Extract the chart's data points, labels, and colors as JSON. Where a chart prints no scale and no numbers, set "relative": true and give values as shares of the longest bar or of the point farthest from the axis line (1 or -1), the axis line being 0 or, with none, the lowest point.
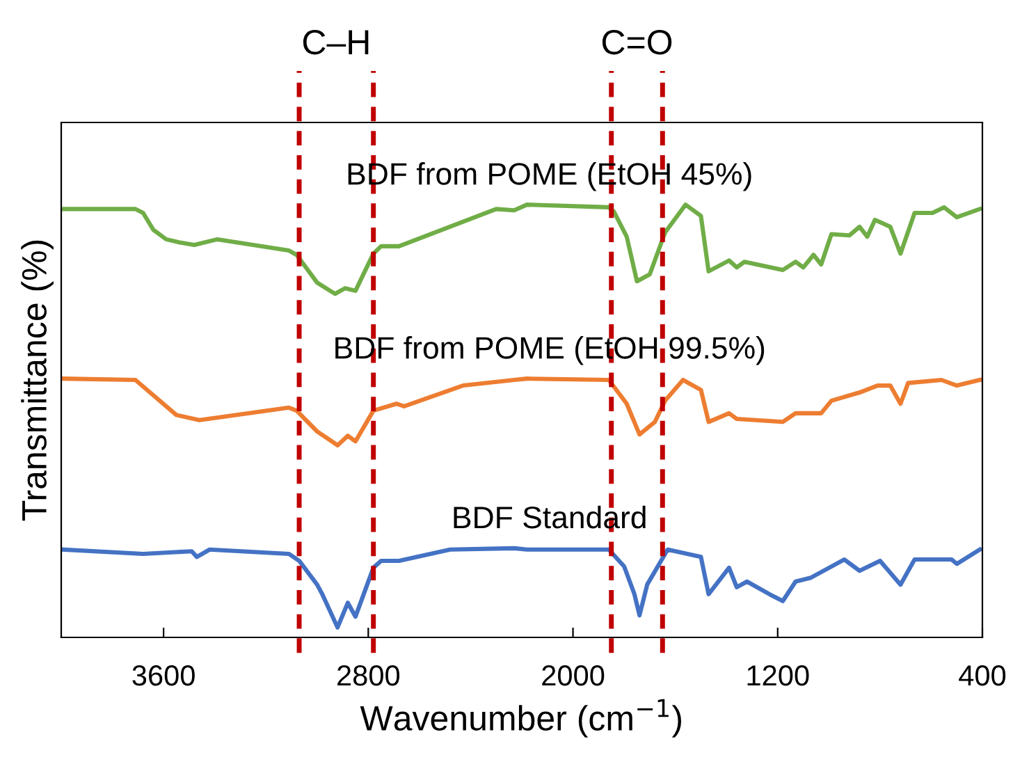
{
  "chart_data": {
    "type": "line",
    "relative": true,
    "xlabel": "Wavenumber (cm$^{−1}$)",
    "ylabel": "Transmittance (%)",
    "xlim": [
      4000,
      400
    ],
    "xticks": [
      3600,
      2800,
      2000,
      1200,
      400
    ],
    "grid": false,
    "marker": "none",
    "line_style": "solid",
    "tick_labels": "x",
    "series": [
      {
        "name": "BDF from POME (EtOH 45%)",
        "color": "#70ad47",
        "x": [
          3990,
          3710,
          3680,
          3640,
          3590,
          3540,
          3480,
          3390,
          3110,
          3080,
          3000,
          2930,
          2890,
          2850,
          2780,
          2750,
          2680,
          2300,
          2230,
          2180,
          1860,
          1840,
          1790,
          1750,
          1700,
          1640,
          1560,
          1500,
          1470,
          1390,
          1360,
          1330,
          1180,
          1130,
          1100,
          1060,
          1030,
          990,
          920,
          880,
          850,
          820,
          760,
          720,
          665,
          595,
          550,
          500,
          410
        ],
        "values": [
          0.99,
          0.99,
          0.981,
          0.942,
          0.92,
          0.913,
          0.907,
          0.92,
          0.894,
          0.884,
          0.82,
          0.794,
          0.807,
          0.801,
          0.887,
          0.904,
          0.904,
          0.99,
          0.987,
          1.0,
          0.994,
          0.984,
          0.926,
          0.823,
          0.839,
          0.936,
          1.0,
          0.974,
          0.846,
          0.871,
          0.855,
          0.868,
          0.849,
          0.868,
          0.855,
          0.884,
          0.862,
          0.932,
          0.929,
          0.949,
          0.926,
          0.965,
          0.949,
          0.887,
          0.981,
          0.981,
          0.994,
          0.971,
          0.99
        ]
      },
      {
        "name": "BDF from POME (EtOH 99.5%)",
        "color": "#ed7d31",
        "x": [
          3990,
          3710,
          3550,
          3460,
          3110,
          3080,
          3000,
          2920,
          2880,
          2850,
          2780,
          2690,
          2660,
          2430,
          2230,
          2180,
          1860,
          1790,
          1740,
          1680,
          1640,
          1570,
          1500,
          1470,
          1390,
          1360,
          1180,
          1130,
          1030,
          990,
          880,
          810,
          760,
          720,
          690,
          560,
          500,
          410
        ],
        "values": [
          0.598,
          0.595,
          0.514,
          0.502,
          0.531,
          0.524,
          0.476,
          0.444,
          0.466,
          0.453,
          0.524,
          0.54,
          0.534,
          0.582,
          0.595,
          0.598,
          0.595,
          0.54,
          0.469,
          0.498,
          0.547,
          0.595,
          0.572,
          0.498,
          0.518,
          0.505,
          0.498,
          0.518,
          0.518,
          0.547,
          0.566,
          0.582,
          0.582,
          0.54,
          0.588,
          0.595,
          0.582,
          0.595
        ]
      },
      {
        "name": "BDF Standard",
        "color": "#4472c4",
        "x": [
          3990,
          3680,
          3490,
          3470,
          3420,
          3110,
          3070,
          3000,
          2980,
          2920,
          2880,
          2850,
          2780,
          2750,
          2680,
          2480,
          2230,
          2180,
          1860,
          1800,
          1760,
          1740,
          1710,
          1630,
          1500,
          1470,
          1390,
          1360,
          1320,
          1220,
          1180,
          1130,
          1070,
          940,
          880,
          800,
          720,
          665,
          520,
          500,
          410
        ],
        "values": [
          0.203,
          0.193,
          0.199,
          0.186,
          0.203,
          0.193,
          0.177,
          0.122,
          0.1,
          0.023,
          0.08,
          0.048,
          0.161,
          0.177,
          0.177,
          0.203,
          0.206,
          0.203,
          0.203,
          0.164,
          0.1,
          0.051,
          0.122,
          0.203,
          0.186,
          0.1,
          0.161,
          0.116,
          0.129,
          0.096,
          0.084,
          0.129,
          0.138,
          0.18,
          0.154,
          0.177,
          0.122,
          0.18,
          0.18,
          0.17,
          0.203
        ]
      }
    ],
    "ref_lines": [
      {
        "axis": "x",
        "value": 3070,
        "color": "#c00000",
        "line_style": "dashed"
      },
      {
        "axis": "x",
        "value": 2780,
        "color": "#c00000",
        "line_style": "dashed"
      },
      {
        "axis": "x",
        "value": 1850,
        "color": "#c00000",
        "line_style": "dashed"
      },
      {
        "axis": "x",
        "value": 1650,
        "color": "#c00000",
        "line_style": "dashed"
      }
    ],
    "annotations": [
      "C–H",
      "C=O"
    ]
  }
}
